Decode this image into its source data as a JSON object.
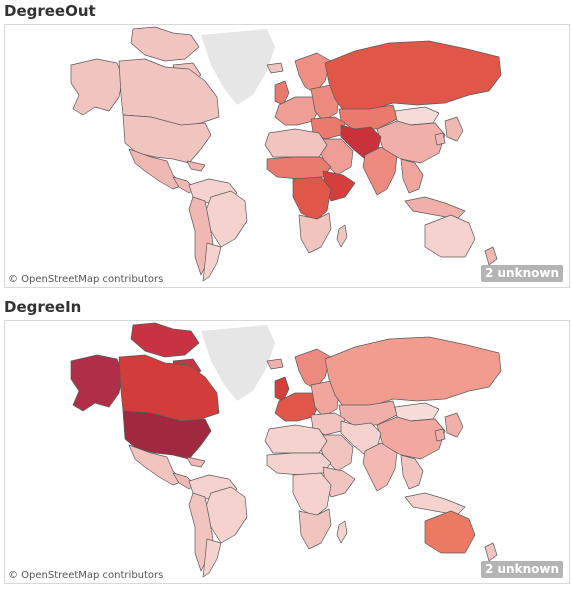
{
  "maps": [
    {
      "id": "out",
      "title": "DegreeOut",
      "attribution": "© OpenStreetMap contributors",
      "unknown_label": "2 unknown",
      "regions": {
        "greenland": "#e6e6e6",
        "alaska": "#f2c4c0",
        "canada": "#f2c4c0",
        "canada_islands": "#f2c4c0",
        "usa": "#f2c4c0",
        "mexico": "#f0b8b3",
        "central_america": "#f0b8b3",
        "colombia_venezuela": "#f5d2ce",
        "brazil": "#f5d2ce",
        "andes": "#f0b8b3",
        "southern_cone": "#f5d2ce",
        "iceland": "#f2c4c0",
        "scandinavia": "#ef8f84",
        "britain": "#ea7a6d",
        "western_europe": "#ef9e95",
        "eastern_europe": "#ec8a7f",
        "russia": "#e0574a",
        "kazakhstan": "#ea7a6d",
        "mongolia": "#f6dcd9",
        "china": "#f0b0a9",
        "middle_east": "#ea7a6d",
        "iran_afghanistan": "#c9323a",
        "arabia": "#ef9e95",
        "india": "#ec8a7f",
        "se_asia": "#f0a59d",
        "japan_korea": "#f0b8b3",
        "indonesia": "#f0b0a9",
        "north_africa": "#f2c4c0",
        "sahel": "#ea7a6d",
        "horn_africa": "#d43f3c",
        "central_africa": "#e0574a",
        "southern_africa": "#f2c4c0",
        "madagascar": "#f2c4c0",
        "australia": "#f5d2ce",
        "new_zealand": "#f0b8b3"
      }
    },
    {
      "id": "in",
      "title": "DegreeIn",
      "attribution": "© OpenStreetMap contributors",
      "unknown_label": "2 unknown",
      "regions": {
        "greenland": "#e6e6e6",
        "alaska": "#b02e48",
        "canada": "#d23d3b",
        "canada_islands": "#c83344",
        "usa": "#a1293f",
        "mexico": "#f2c4c0",
        "central_america": "#f0b8b3",
        "colombia_venezuela": "#f5d2ce",
        "brazil": "#f5d2ce",
        "andes": "#f2c4c0",
        "southern_cone": "#f5d2ce",
        "iceland": "#f0b0a9",
        "scandinavia": "#ec8a7f",
        "britain": "#d43f3c",
        "western_europe": "#e0574a",
        "eastern_europe": "#f0a59d",
        "russia": "#f29c90",
        "kazakhstan": "#f0b0a9",
        "mongolia": "#f6dcd9",
        "china": "#f2a79f",
        "middle_east": "#f2c4c0",
        "iran_afghanistan": "#f5d2ce",
        "arabia": "#f2c4c0",
        "india": "#f2b8b1",
        "se_asia": "#f2c4c0",
        "japan_korea": "#f0b0a9",
        "indonesia": "#f5d2ce",
        "north_africa": "#f5d2ce",
        "sahel": "#f5d2ce",
        "horn_africa": "#f2c4c0",
        "central_africa": "#f5d2ce",
        "southern_africa": "#f2c4c0",
        "madagascar": "#f5d2ce",
        "australia": "#ec7a63",
        "new_zealand": "#f2c4c0"
      }
    }
  ]
}
